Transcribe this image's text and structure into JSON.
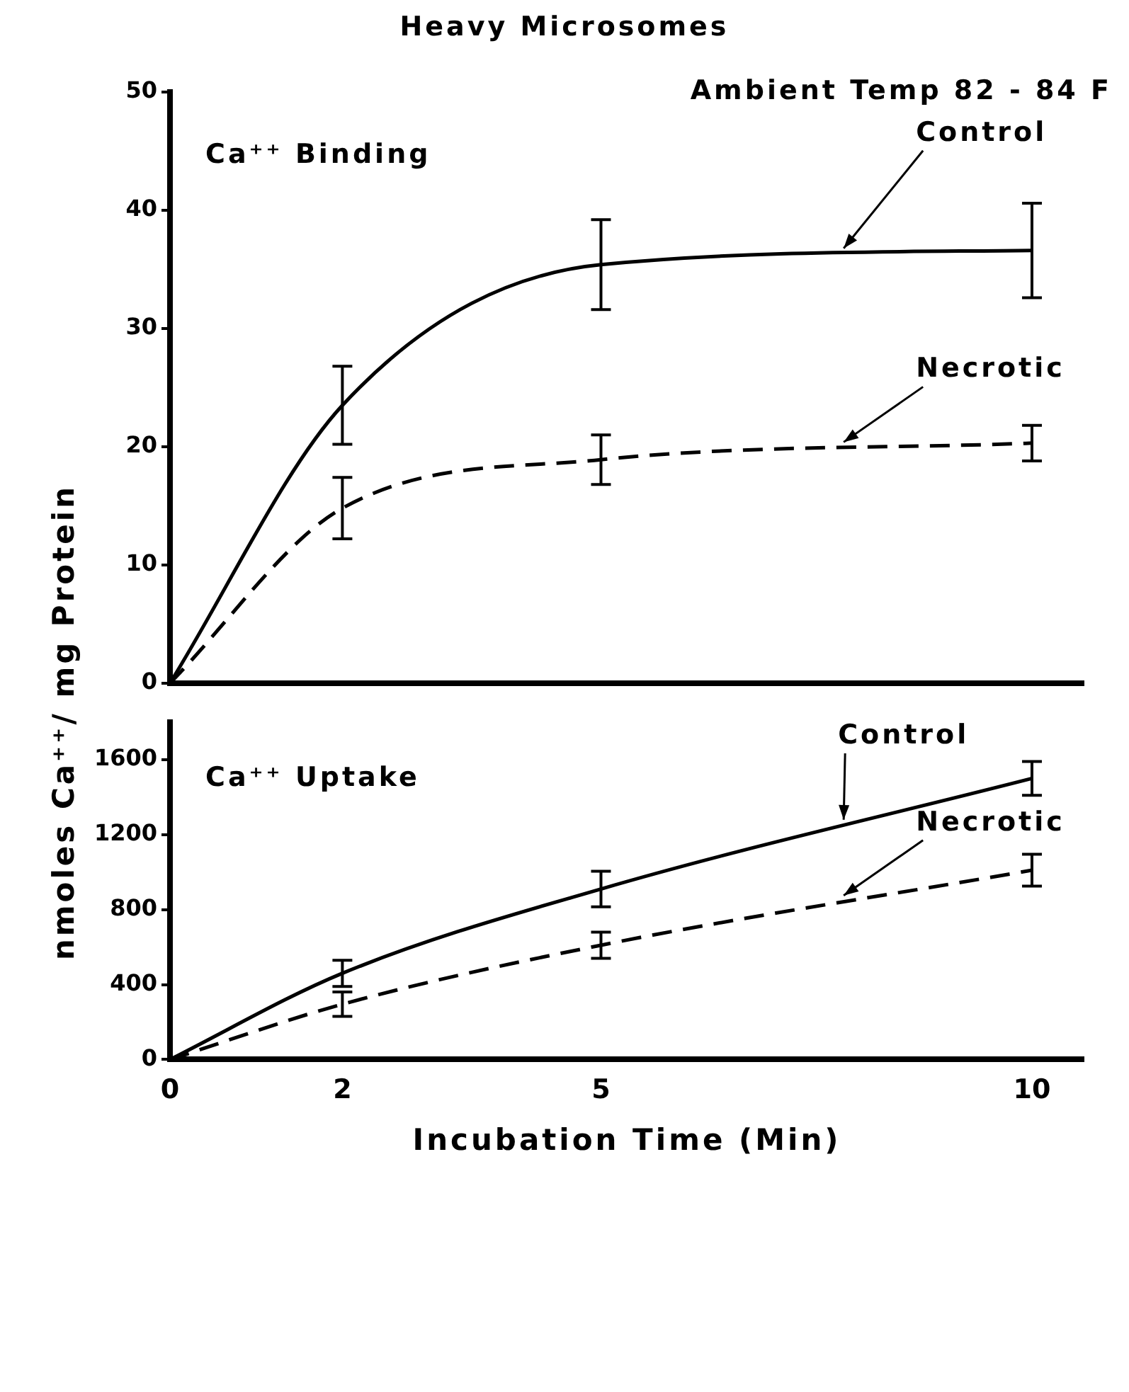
{
  "chart_data": [
    {
      "type": "line",
      "title": "Heavy Microsomes",
      "subtitle": "Ambient Temp 82 - 84 F",
      "ylabel": "nmoles Ca⁺⁺/ mg Protein",
      "annotations": [
        "Ca⁺⁺ Binding"
      ],
      "x": [
        0,
        2,
        5,
        10
      ],
      "xlim": [
        0,
        10.6
      ],
      "xticks": [
        0,
        2,
        5,
        10
      ],
      "ylim": [
        0,
        50
      ],
      "yticks": [
        0,
        10,
        20,
        30,
        40,
        50
      ],
      "tick_labels": "y",
      "grid": false,
      "legend": false,
      "series": [
        {
          "name": "Control",
          "color": "#000000",
          "line_style": "solid",
          "values": [
            0,
            23.5,
            35.4,
            36.6
          ],
          "errors": [
            null,
            3.3,
            3.8,
            4
          ]
        },
        {
          "name": "Necrotic",
          "color": "#000000",
          "line_style": "dashed",
          "values": [
            0,
            14.8,
            18.9,
            20.3
          ],
          "errors": [
            null,
            2.6,
            2.1,
            1.5
          ]
        }
      ]
    },
    {
      "type": "line",
      "xlabel": "Incubation Time (Min)",
      "annotations": [
        "Ca⁺⁺ Uptake"
      ],
      "x": [
        0,
        2,
        5,
        10
      ],
      "xlim": [
        0,
        10.6
      ],
      "xticks": [
        0,
        2,
        5,
        10
      ],
      "ylim": [
        0,
        1800
      ],
      "yticks": [
        0,
        400,
        800,
        1200,
        1600
      ],
      "grid": false,
      "legend": false,
      "series": [
        {
          "name": "Control",
          "color": "#000000",
          "line_style": "solid",
          "values": [
            0,
            460,
            910,
            1500
          ],
          "errors": [
            null,
            70,
            95,
            90
          ]
        },
        {
          "name": "Necrotic",
          "color": "#000000",
          "line_style": "dashed",
          "values": [
            0,
            295,
            610,
            1010
          ],
          "errors": [
            null,
            65,
            70,
            85
          ]
        }
      ]
    }
  ]
}
